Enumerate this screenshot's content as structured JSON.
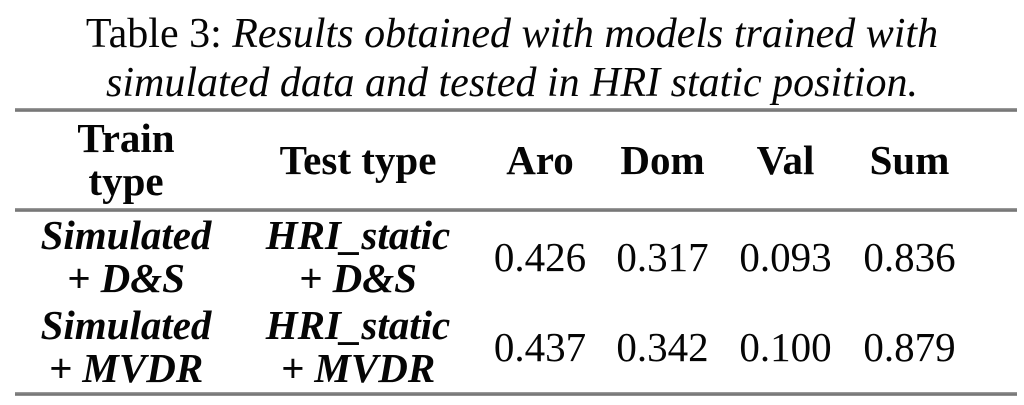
{
  "caption": {
    "label": "Table 3:",
    "line1": "Results obtained with models trained with",
    "line2": "simulated data and tested in HRI static position."
  },
  "table": {
    "headers": {
      "train": [
        "Train",
        "type"
      ],
      "test": "Test type",
      "aro": "Aro",
      "dom": "Dom",
      "val": "Val",
      "sum": "Sum"
    },
    "rows": [
      {
        "train": [
          "Simulated",
          "+ D&S"
        ],
        "test": [
          "HRI_static",
          "+ D&S"
        ],
        "aro": "0.426",
        "dom": "0.317",
        "val": "0.093",
        "sum": "0.836"
      },
      {
        "train": [
          "Simulated",
          "+ MVDR"
        ],
        "test": [
          "HRI_static",
          "+ MVDR"
        ],
        "aro": "0.437",
        "dom": "0.342",
        "val": "0.100",
        "sum": "0.879"
      }
    ]
  },
  "colors": {
    "rule_gray": "#858585",
    "text": "#050505",
    "background": "#ffffff"
  }
}
